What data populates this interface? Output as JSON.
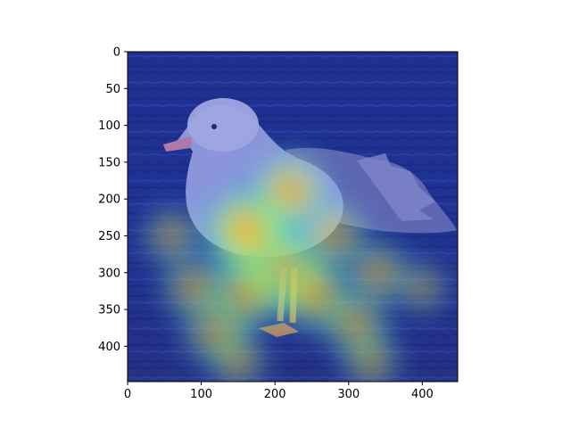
{
  "chart_data": {
    "type": "heatmap",
    "title": "",
    "xlabel": "",
    "ylabel": "",
    "xlim": [
      0,
      448
    ],
    "ylim": [
      448,
      0
    ],
    "x_ticks": [
      0,
      100,
      200,
      300,
      400
    ],
    "y_ticks": [
      0,
      50,
      100,
      150,
      200,
      250,
      300,
      350,
      400
    ],
    "grid": false,
    "legend": "none",
    "colormap": "jet",
    "image_subject": "seagull-photo",
    "colors": {
      "water": "#1c2a78",
      "background_overlay": "#1b2f9a",
      "gull_body": "#b7b8e0",
      "gull_wing": "#7a78a8",
      "legs": "#ff9b2e",
      "hot": "#ff3b2b",
      "warm": "#ffe32a",
      "mid": "#7cff6a",
      "cool": "#2fc7ff"
    },
    "hotspots": [
      {
        "x": 180,
        "y": 265,
        "intensity": 1.0
      },
      {
        "x": 215,
        "y": 300,
        "intensity": 0.9
      },
      {
        "x": 160,
        "y": 240,
        "intensity": 0.85
      },
      {
        "x": 220,
        "y": 190,
        "intensity": 0.75
      },
      {
        "x": 255,
        "y": 330,
        "intensity": 0.7
      },
      {
        "x": 160,
        "y": 330,
        "intensity": 0.7
      },
      {
        "x": 120,
        "y": 380,
        "intensity": 0.55
      },
      {
        "x": 310,
        "y": 370,
        "intensity": 0.55
      },
      {
        "x": 90,
        "y": 320,
        "intensity": 0.5
      },
      {
        "x": 340,
        "y": 300,
        "intensity": 0.5
      },
      {
        "x": 280,
        "y": 250,
        "intensity": 0.55
      },
      {
        "x": 60,
        "y": 250,
        "intensity": 0.4
      },
      {
        "x": 150,
        "y": 420,
        "intensity": 0.4
      },
      {
        "x": 330,
        "y": 420,
        "intensity": 0.4
      },
      {
        "x": 400,
        "y": 320,
        "intensity": 0.3
      }
    ]
  }
}
